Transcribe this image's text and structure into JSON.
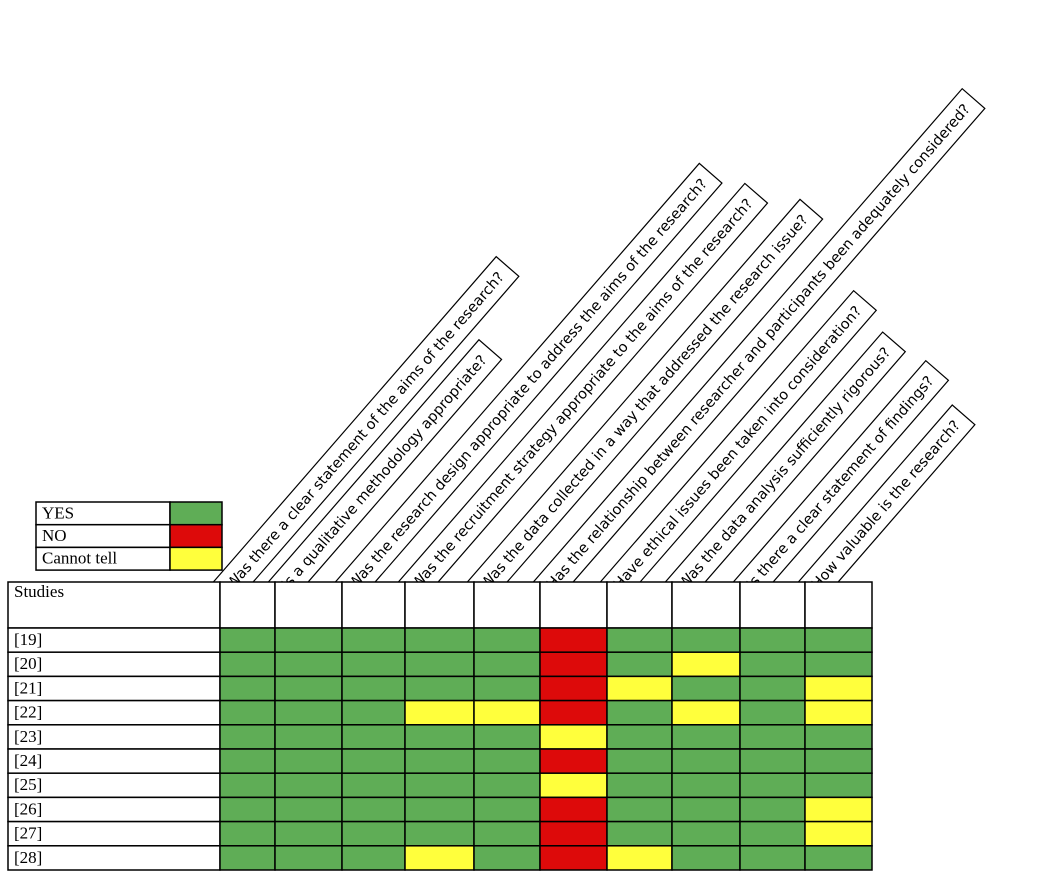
{
  "legend": [
    {
      "label": "YES",
      "color": "#5fad56"
    },
    {
      "label": "NO",
      "color": "#dd0a0a"
    },
    {
      "label": "Cannot tell",
      "color": "#ffff3c"
    }
  ],
  "header": "Studies",
  "questions": [
    "Was there a clear statement of the aims of the research?",
    "Is a qualitative methodology appropriate?",
    "Was the research design appropriate to address the aims of the research?",
    "Was the recruitment strategy appropriate to the aims of the research?",
    "Was the data collected in a way that addressed the research issue?",
    "Has the relationship between researcher and participants been adequately considered?",
    "Have ethical issues been taken into consideration?",
    "Was the data analysis sufficiently rigorous?",
    "Is there a clear statement of findings?",
    "How valuable is the research?"
  ],
  "studies": [
    "[19]",
    "[20]",
    "[21]",
    "[22]",
    "[23]",
    "[24]",
    "[25]",
    "[26]",
    "[27]",
    "[28]"
  ],
  "ratings": [
    [
      "YES",
      "YES",
      "YES",
      "YES",
      "YES",
      "NO",
      "YES",
      "YES",
      "YES",
      "YES"
    ],
    [
      "YES",
      "YES",
      "YES",
      "YES",
      "YES",
      "NO",
      "YES",
      "Cannot tell",
      "YES",
      "YES"
    ],
    [
      "YES",
      "YES",
      "YES",
      "YES",
      "YES",
      "NO",
      "Cannot tell",
      "YES",
      "YES",
      "Cannot tell"
    ],
    [
      "YES",
      "YES",
      "YES",
      "Cannot tell",
      "Cannot tell",
      "NO",
      "YES",
      "Cannot tell",
      "YES",
      "Cannot tell"
    ],
    [
      "YES",
      "YES",
      "YES",
      "YES",
      "YES",
      "Cannot tell",
      "YES",
      "YES",
      "YES",
      "YES"
    ],
    [
      "YES",
      "YES",
      "YES",
      "YES",
      "YES",
      "NO",
      "YES",
      "YES",
      "YES",
      "YES"
    ],
    [
      "YES",
      "YES",
      "YES",
      "YES",
      "YES",
      "Cannot tell",
      "YES",
      "YES",
      "YES",
      "YES"
    ],
    [
      "YES",
      "YES",
      "YES",
      "YES",
      "YES",
      "NO",
      "YES",
      "YES",
      "YES",
      "Cannot tell"
    ],
    [
      "YES",
      "YES",
      "YES",
      "YES",
      "YES",
      "NO",
      "YES",
      "YES",
      "YES",
      "Cannot tell"
    ],
    [
      "YES",
      "YES",
      "YES",
      "Cannot tell",
      "YES",
      "NO",
      "Cannot tell",
      "YES",
      "YES",
      "YES"
    ]
  ]
}
